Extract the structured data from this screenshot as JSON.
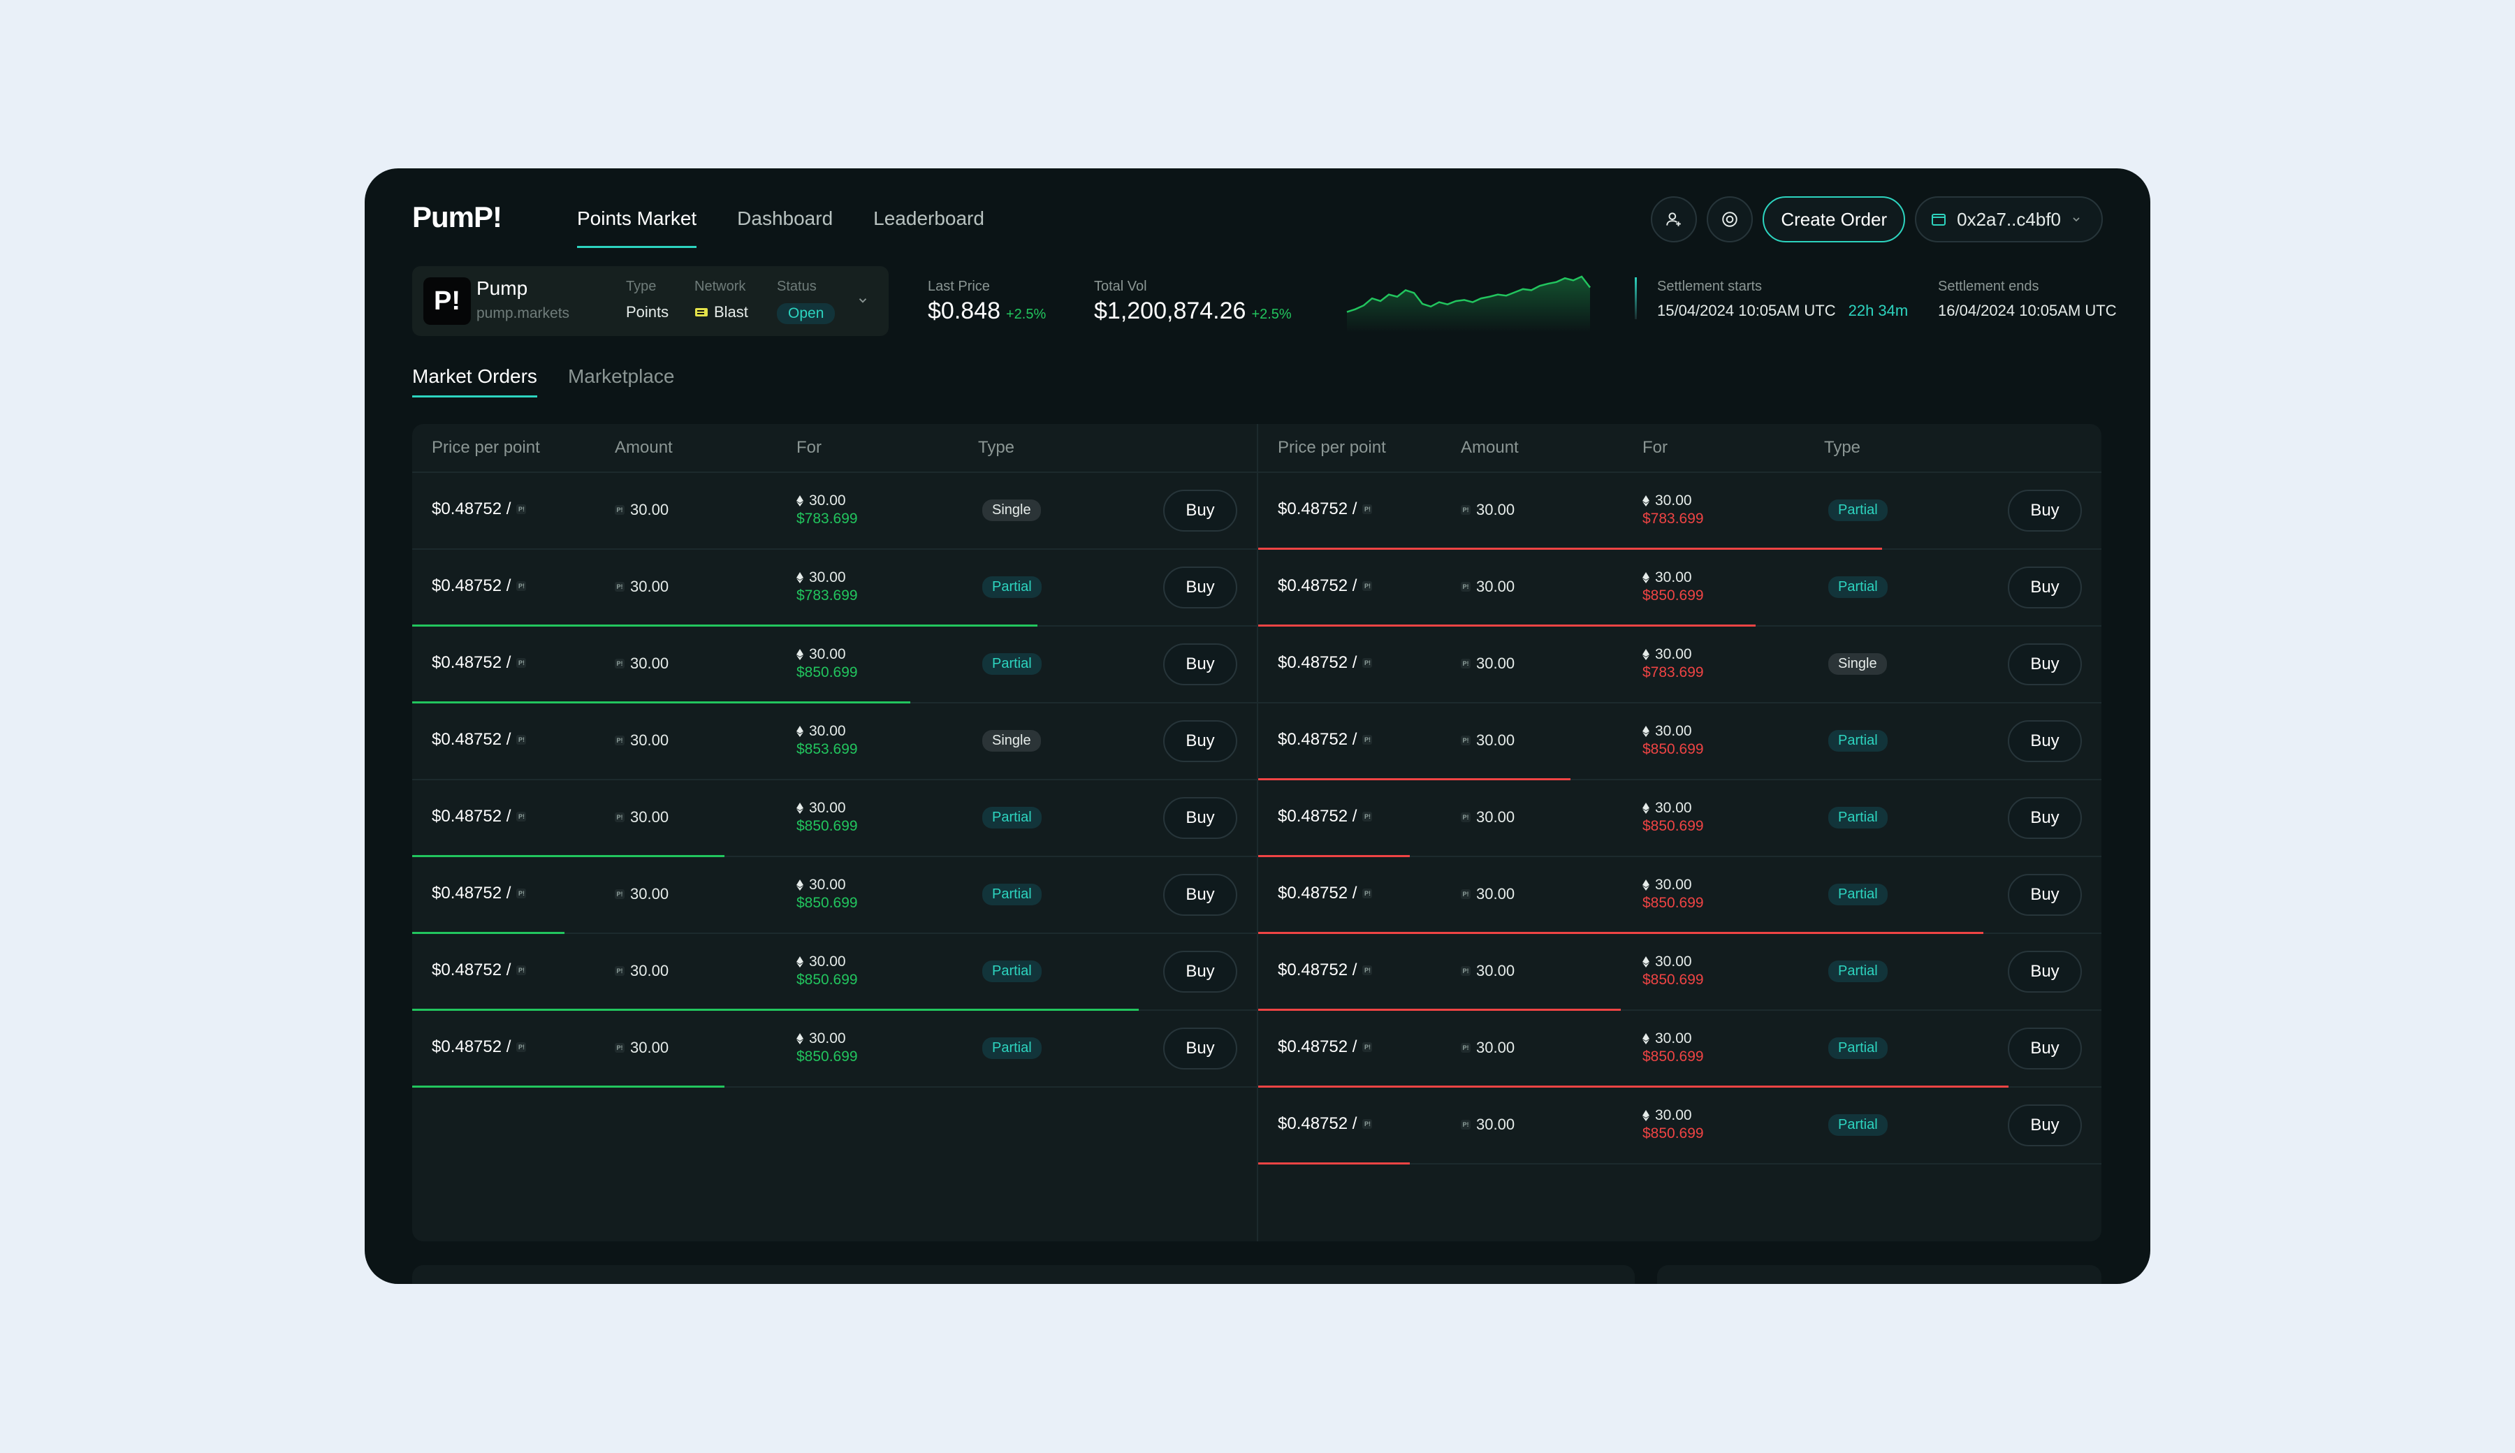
{
  "app": {
    "logo": "PumP!",
    "nav": [
      "Points Market",
      "Dashboard",
      "Leaderboard"
    ],
    "create_order": "Create Order",
    "wallet": "0x2a7..c4bf0"
  },
  "market": {
    "logo_text": "P!",
    "name": "Pump",
    "url": "pump.markets",
    "type_label": "Type",
    "type_value": "Points",
    "network_label": "Network",
    "network_value": "Blast",
    "status_label": "Status",
    "status_value": "Open"
  },
  "stats": {
    "last_price_label": "Last Price",
    "last_price": "$0.848",
    "last_price_change": "+2.5%",
    "total_vol_label": "Total Vol",
    "total_vol": "$1,200,874.26",
    "total_vol_change": "+2.5%",
    "settle_start_label": "Settlement starts",
    "settle_start": "15/04/2024 10:05AM UTC",
    "countdown": "22h 34m",
    "settle_end_label": "Settlement ends",
    "settle_end": "16/04/2024 10:05AM UTC"
  },
  "sparkline": [
    0.3,
    0.35,
    0.42,
    0.55,
    0.5,
    0.62,
    0.58,
    0.7,
    0.65,
    0.45,
    0.4,
    0.48,
    0.44,
    0.5,
    0.52,
    0.48,
    0.55,
    0.58,
    0.62,
    0.6,
    0.66,
    0.72,
    0.7,
    0.78,
    0.82,
    0.85,
    0.92,
    0.88,
    0.95,
    0.75
  ],
  "tabs": [
    "Market Orders",
    "Marketplace"
  ],
  "columns": [
    "Price per point",
    "Amount",
    "For",
    "Type"
  ],
  "left_orders": [
    {
      "price": "$0.48752 /",
      "amount": "30.00",
      "for_amount": "30.00",
      "for_value": "$783.699",
      "type": "Single",
      "fill": 0
    },
    {
      "price": "$0.48752 /",
      "amount": "30.00",
      "for_amount": "30.00",
      "for_value": "$783.699",
      "type": "Partial",
      "fill": 0.74
    },
    {
      "price": "$0.48752 /",
      "amount": "30.00",
      "for_amount": "30.00",
      "for_value": "$850.699",
      "type": "Partial",
      "fill": 0.59
    },
    {
      "price": "$0.48752 /",
      "amount": "30.00",
      "for_amount": "30.00",
      "for_value": "$853.699",
      "type": "Single",
      "fill": 0
    },
    {
      "price": "$0.48752 /",
      "amount": "30.00",
      "for_amount": "30.00",
      "for_value": "$850.699",
      "type": "Partial",
      "fill": 0.37
    },
    {
      "price": "$0.48752 /",
      "amount": "30.00",
      "for_amount": "30.00",
      "for_value": "$850.699",
      "type": "Partial",
      "fill": 0.18
    },
    {
      "price": "$0.48752 /",
      "amount": "30.00",
      "for_amount": "30.00",
      "for_value": "$850.699",
      "type": "Partial",
      "fill": 0.86
    },
    {
      "price": "$0.48752 /",
      "amount": "30.00",
      "for_amount": "30.00",
      "for_value": "$850.699",
      "type": "Partial",
      "fill": 0.37
    }
  ],
  "right_orders": [
    {
      "price": "$0.48752 /",
      "amount": "30.00",
      "for_amount": "30.00",
      "for_value": "$783.699",
      "type": "Partial",
      "fill": 0.74
    },
    {
      "price": "$0.48752 /",
      "amount": "30.00",
      "for_amount": "30.00",
      "for_value": "$850.699",
      "type": "Partial",
      "fill": 0.59
    },
    {
      "price": "$0.48752 /",
      "amount": "30.00",
      "for_amount": "30.00",
      "for_value": "$783.699",
      "type": "Single",
      "fill": 0
    },
    {
      "price": "$0.48752 /",
      "amount": "30.00",
      "for_amount": "30.00",
      "for_value": "$850.699",
      "type": "Partial",
      "fill": 0.37
    },
    {
      "price": "$0.48752 /",
      "amount": "30.00",
      "for_amount": "30.00",
      "for_value": "$850.699",
      "type": "Partial",
      "fill": 0.18
    },
    {
      "price": "$0.48752 /",
      "amount": "30.00",
      "for_amount": "30.00",
      "for_value": "$850.699",
      "type": "Partial",
      "fill": 0.86
    },
    {
      "price": "$0.48752 /",
      "amount": "30.00",
      "for_amount": "30.00",
      "for_value": "$850.699",
      "type": "Partial",
      "fill": 0.43
    },
    {
      "price": "$0.48752 /",
      "amount": "30.00",
      "for_amount": "30.00",
      "for_value": "$850.699",
      "type": "Partial",
      "fill": 0.89
    },
    {
      "price": "$0.48752 /",
      "amount": "30.00",
      "for_amount": "30.00",
      "for_value": "$850.699",
      "type": "Partial",
      "fill": 0.18
    }
  ],
  "buy_label": "Buy"
}
